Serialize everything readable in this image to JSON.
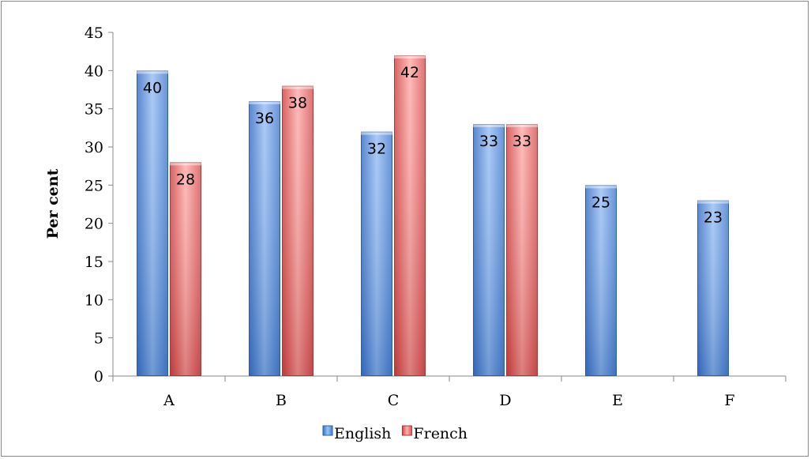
{
  "chart_data": {
    "type": "bar",
    "title": "",
    "xlabel": "",
    "ylabel": "Per cent",
    "categories": [
      "A",
      "B",
      "C",
      "D",
      "E",
      "F"
    ],
    "series": [
      {
        "name": "English",
        "values": [
          40,
          36,
          32,
          33,
          25,
          23
        ],
        "color": "#4f81bd"
      },
      {
        "name": "French",
        "values": [
          28,
          38,
          42,
          33,
          null,
          null
        ],
        "color": "#c0504d"
      }
    ],
    "ylim": [
      0,
      45
    ],
    "yticks": [
      0,
      5,
      10,
      15,
      20,
      25,
      30,
      35,
      40,
      45
    ],
    "grid": false,
    "legend_position": "bottom",
    "data_labels": true
  }
}
